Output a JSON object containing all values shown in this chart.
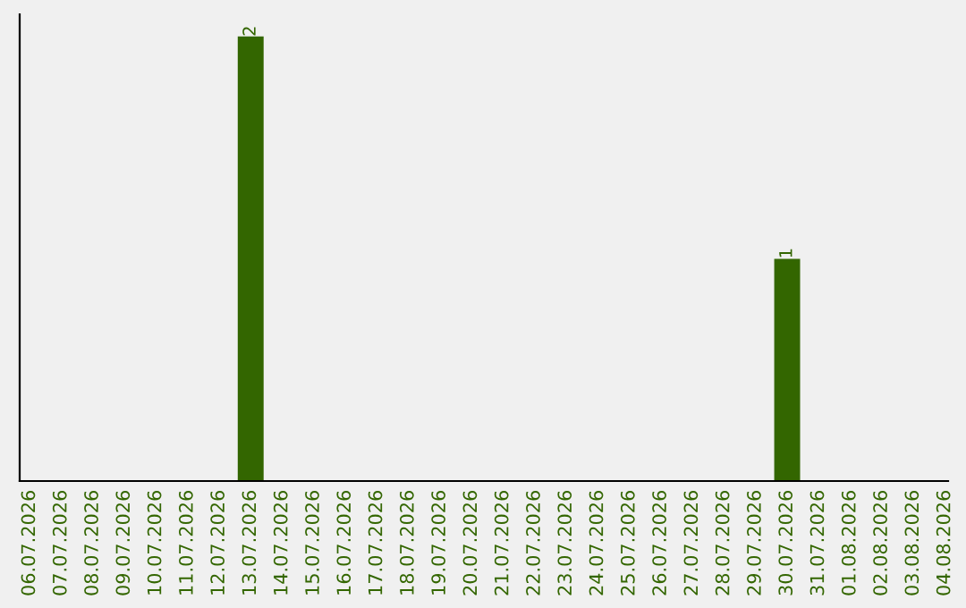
{
  "chart_data": {
    "type": "bar",
    "categories": [
      "06.07.2026",
      "07.07.2026",
      "08.07.2026",
      "09.07.2026",
      "10.07.2026",
      "11.07.2026",
      "12.07.2026",
      "13.07.2026",
      "14.07.2026",
      "15.07.2026",
      "16.07.2026",
      "17.07.2026",
      "18.07.2026",
      "19.07.2026",
      "20.07.2026",
      "21.07.2026",
      "22.07.2026",
      "23.07.2026",
      "24.07.2026",
      "25.07.2026",
      "26.07.2026",
      "27.07.2026",
      "28.07.2026",
      "29.07.2026",
      "30.07.2026",
      "31.07.2026",
      "01.08.2026",
      "02.08.2026",
      "03.08.2026",
      "04.08.2026"
    ],
    "values": [
      0,
      0,
      0,
      0,
      0,
      0,
      0,
      2,
      0,
      0,
      0,
      0,
      0,
      0,
      0,
      0,
      0,
      0,
      0,
      0,
      0,
      0,
      0,
      0,
      1,
      0,
      0,
      0,
      0,
      0
    ],
    "value_labels": [
      null,
      null,
      null,
      null,
      null,
      null,
      null,
      "2",
      null,
      null,
      null,
      null,
      null,
      null,
      null,
      null,
      null,
      null,
      null,
      null,
      null,
      null,
      null,
      null,
      "1",
      null,
      null,
      null,
      null,
      null
    ],
    "color": "#336600",
    "tick_labels": "x",
    "grid": false
  }
}
